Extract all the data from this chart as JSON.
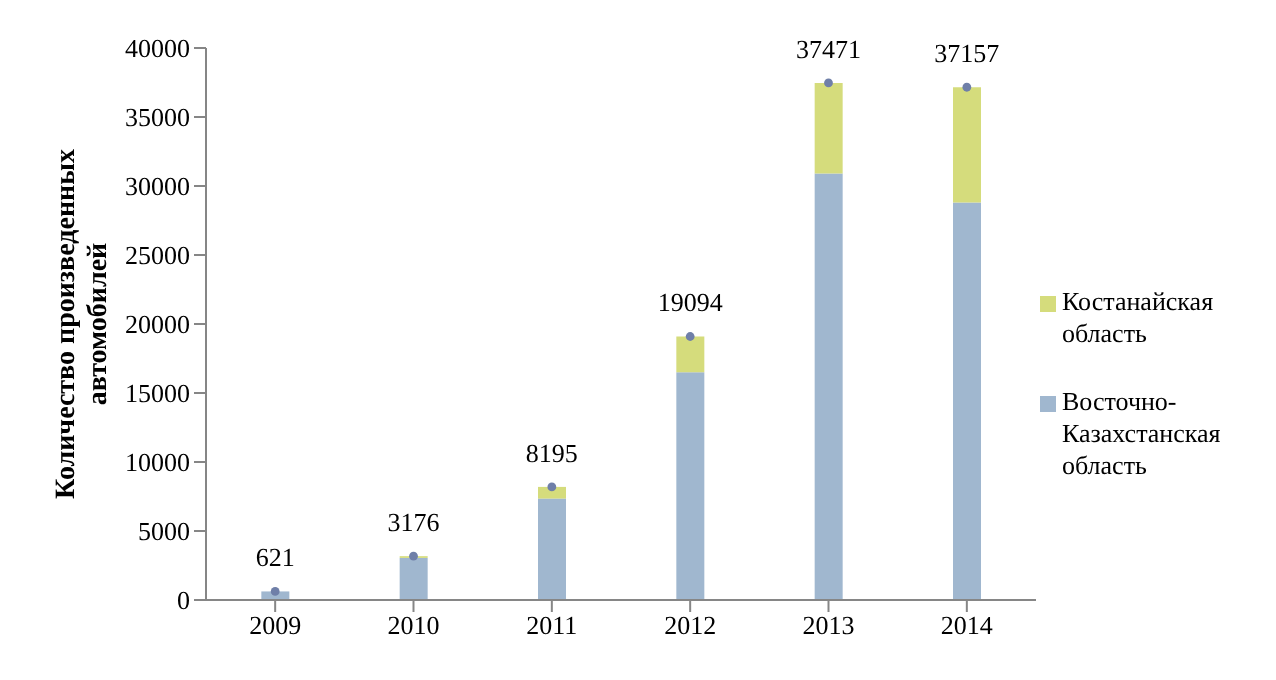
{
  "chart_data": {
    "type": "bar",
    "stacked": true,
    "ylabel": "Количество произведенных автомобилей",
    "categories": [
      "2009",
      "2010",
      "2011",
      "2012",
      "2013",
      "2014"
    ],
    "series": [
      {
        "name": "Восточно-Казахстанская область",
        "color": "#a0b7cf",
        "values": [
          621,
          3050,
          7350,
          16500,
          30900,
          28800
        ]
      },
      {
        "name": "Костанайская область",
        "color": "#d5dc7c",
        "values": [
          0,
          126,
          845,
          2594,
          6571,
          8357
        ]
      },
      {
        "type": "scatter",
        "color": "#6f7fa8",
        "values": [
          621,
          3176,
          8195,
          19094,
          37471,
          37157
        ]
      }
    ],
    "totals": [
      "621",
      "3176",
      "8195",
      "19094",
      "37471",
      "37157"
    ],
    "ylim": [
      0,
      40000
    ],
    "yticks": [
      0,
      5000,
      10000,
      15000,
      20000,
      25000,
      30000,
      35000,
      40000
    ],
    "grid": false,
    "legend": "right",
    "marker": "circle"
  }
}
